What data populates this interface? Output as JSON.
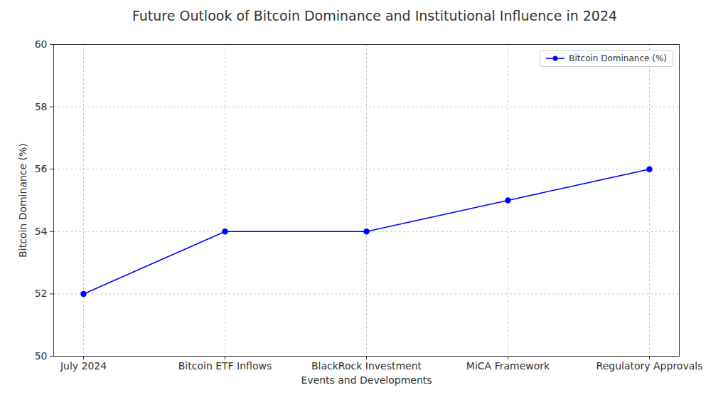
{
  "chart_data": {
    "type": "line",
    "title": "Future Outlook of Bitcoin Dominance and Institutional Influence in 2024",
    "x_label": "Events and Developments",
    "y_label": "Bitcoin Dominance (%)",
    "categories": [
      "July 2024",
      "Bitcoin ETF Inflows",
      "BlackRock Investment",
      "MiCA Framework",
      "Regulatory Approvals"
    ],
    "series": [
      {
        "name": "Bitcoin Dominance (%)",
        "color": "#0000ff",
        "values": [
          52,
          54,
          54,
          55,
          56
        ],
        "marker": "o",
        "line_style": "solid"
      }
    ],
    "ylim": [
      50,
      60
    ],
    "yticks": [
      50,
      52,
      54,
      56,
      58,
      60
    ],
    "grid": true,
    "legend": "upper right"
  }
}
